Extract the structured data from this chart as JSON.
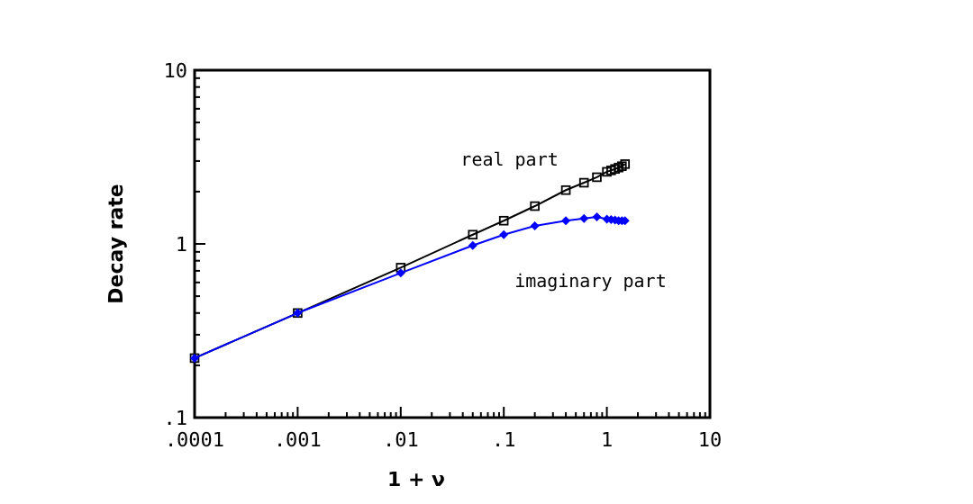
{
  "chart_data": {
    "type": "line",
    "xlabel": "1 + ν",
    "ylabel": "Decay rate",
    "log": "xy",
    "xlim": [
      0.0001,
      10
    ],
    "ylim": [
      0.1,
      10
    ],
    "xticks": [
      {
        "value": 0.0001,
        "label": ".0001"
      },
      {
        "value": 0.001,
        "label": ".001"
      },
      {
        "value": 0.01,
        "label": ".01"
      },
      {
        "value": 0.1,
        "label": ".1"
      },
      1,
      10
    ],
    "yticks": [
      {
        "value": 0.1,
        "label": ".1"
      },
      1,
      10
    ],
    "grid": false,
    "series": [
      {
        "name": "real part",
        "color": "#000000",
        "marker": "square",
        "x": [
          0.0001,
          0.001,
          0.01,
          0.05,
          0.1,
          0.2,
          0.4,
          0.6,
          0.8,
          1.0,
          1.1,
          1.2,
          1.3,
          1.4,
          1.5
        ],
        "values": [
          0.22,
          0.4,
          0.73,
          1.13,
          1.36,
          1.65,
          2.04,
          2.25,
          2.42,
          2.6,
          2.65,
          2.7,
          2.75,
          2.8,
          2.88
        ]
      },
      {
        "name": "imaginary part",
        "color": "#0000ff",
        "marker": "diamond",
        "x": [
          0.0001,
          0.001,
          0.01,
          0.05,
          0.1,
          0.2,
          0.4,
          0.6,
          0.8,
          1.0,
          1.1,
          1.2,
          1.3,
          1.4,
          1.5
        ],
        "values": [
          0.22,
          0.4,
          0.68,
          0.98,
          1.13,
          1.27,
          1.36,
          1.4,
          1.43,
          1.39,
          1.38,
          1.37,
          1.36,
          1.36,
          1.36
        ]
      }
    ]
  }
}
